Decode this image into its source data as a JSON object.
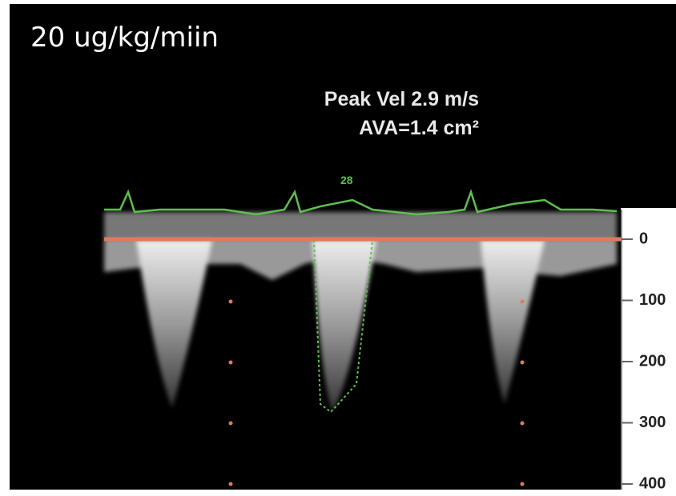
{
  "caption": "20 ug/kg/miin",
  "measurements": [
    "Peak Vel 2.9 m/s",
    "AVA=1.4 cm²"
  ],
  "trace_label": "28",
  "scale_labels": [
    "0",
    "100",
    "200",
    "300",
    "400"
  ]
}
